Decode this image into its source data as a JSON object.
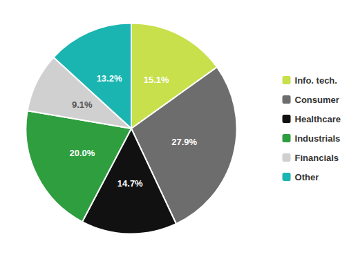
{
  "chart_data": {
    "type": "pie",
    "categories": [
      "Info. tech.",
      "Consumer",
      "Healthcare",
      "Industrials",
      "Financials",
      "Other"
    ],
    "values": [
      15.1,
      27.9,
      14.7,
      20.0,
      9.1,
      13.2
    ],
    "value_labels": [
      "15.1%",
      "27.9%",
      "14.7%",
      "20.0%",
      "9.1%",
      "13.2%"
    ],
    "colors": [
      "#c8e04b",
      "#6d6d6d",
      "#111111",
      "#2e9e3e",
      "#d0d0d0",
      "#1ab5b0"
    ],
    "data_labels": true,
    "legend": "right"
  }
}
